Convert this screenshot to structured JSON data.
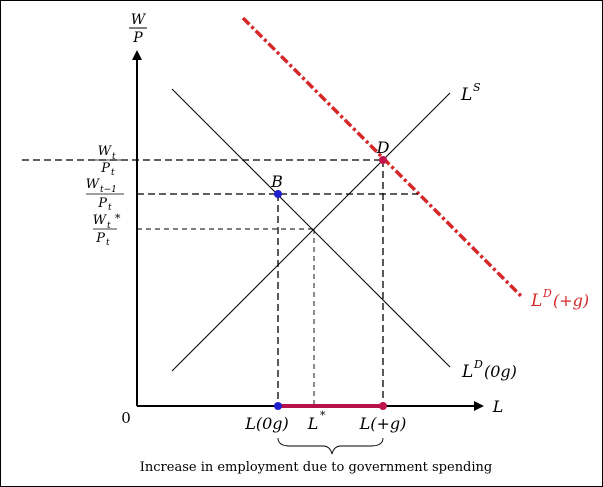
{
  "diagram": {
    "y_axis": {
      "num": "W",
      "den": "P"
    },
    "x_axis": {
      "label": "L"
    },
    "origin_label": "0",
    "wage_labels": {
      "top": {
        "num": "W",
        "num_sub": "t",
        "den": "P",
        "den_sub": "t"
      },
      "middle": {
        "num": "W",
        "num_sub": "t−1",
        "den": "P",
        "den_sub": "t"
      },
      "bottom": {
        "num": "W",
        "num_sub": "t",
        "num_sup": "*",
        "den": "P",
        "den_sub": "t"
      }
    },
    "curves": {
      "supply": {
        "base": "L",
        "sup": "S"
      },
      "demand_0g": {
        "base": "L",
        "sup": "D",
        "tail": "(0g)"
      },
      "demand_plus_g": {
        "base": "L",
        "sup": "D",
        "tail": "(+g)",
        "color": "#d62728"
      }
    },
    "points": {
      "B": "B",
      "D": "D"
    },
    "x_labels": {
      "l0g": "L(0g)",
      "lstar_base": "L",
      "lstar_sup": "*",
      "lplusg": "L(+g)"
    },
    "caption": "Increase in employment due to government spending",
    "colors": {
      "blue_point": "#1f1fd0",
      "red_point": "#c0144c",
      "highlight_segment": "#b5124a",
      "red_curve": "#d62728"
    }
  }
}
